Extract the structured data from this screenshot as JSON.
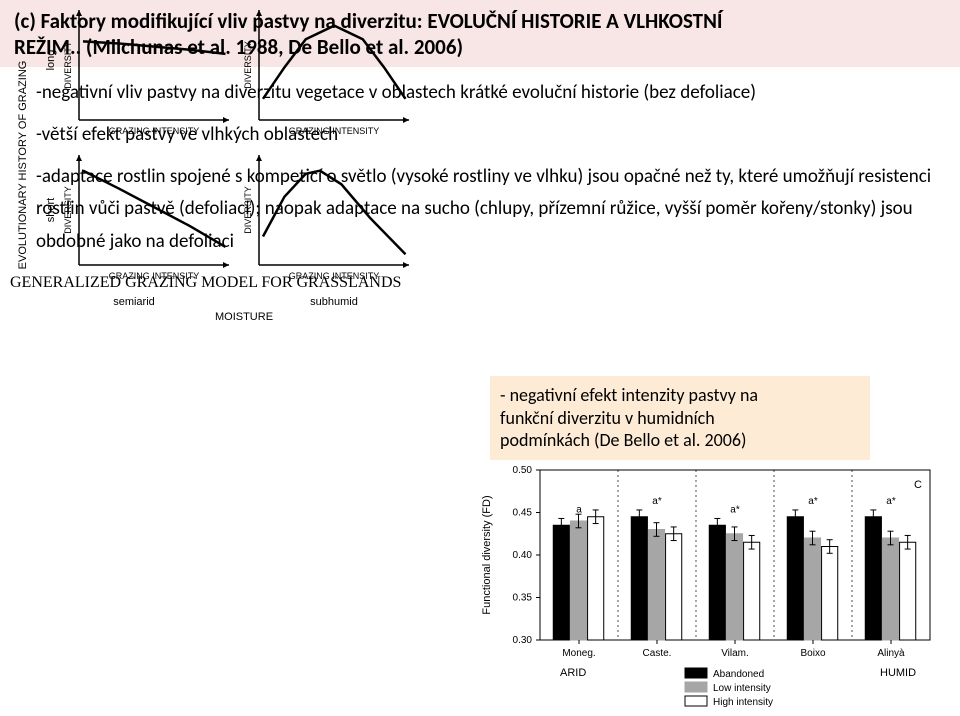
{
  "header": {
    "line1": "(c) Faktory modifikující vliv pastvy na diverzitu: EVOLUČNÍ HISTORIE A VLHKOSTNÍ",
    "line2": "REŽIM.. (Milchunas et al. 1988, De Bello et al. 2006)"
  },
  "bullets": {
    "b1": "-negativní vliv pastvy na diverzitu vegetace v oblastech krátké evoluční historie (bez defoliace)",
    "b2": "-větší efekt pastvy ve vlhkých oblastech",
    "b3": "-adaptace rostlin spojené s kompeticí o světlo (vysoké rostliny ve vlhku) jsou opačné než ty, které umožňují resistenci rostlin vůči pastvě (defoliaci); naopak adaptace na sucho (chlupy, přízemní růžice, vyšší poměr kořeny/stonky) jsou obdobné jako na defoliaci"
  },
  "model_title": "GENERALIZED GRAZING MODEL FOR GRASSLANDS",
  "grazing_model": {
    "y_axis_label": "EVOLUTIONARY HISTORY OF GRAZING",
    "y_tick_top": "long",
    "y_tick_bottom": "short",
    "x_axis_label": "MOISTURE",
    "x_tick_left": "semiarid",
    "x_tick_right": "subhumid",
    "panel_x_label": "GRAZING INTENSITY",
    "panel_y_label": "DIVERSITY",
    "colors": {
      "line": "#000000",
      "bg": "#ffffff"
    },
    "curves": {
      "top_left": [
        [
          0,
          0.7
        ],
        [
          0.25,
          0.68
        ],
        [
          0.5,
          0.65
        ],
        [
          0.75,
          0.62
        ],
        [
          1,
          0.58
        ]
      ],
      "top_right": [
        [
          0,
          0.15
        ],
        [
          0.15,
          0.45
        ],
        [
          0.3,
          0.72
        ],
        [
          0.5,
          0.85
        ],
        [
          0.7,
          0.72
        ],
        [
          0.85,
          0.45
        ],
        [
          1,
          0.15
        ]
      ],
      "bottom_left": [
        [
          0,
          0.85
        ],
        [
          0.25,
          0.68
        ],
        [
          0.5,
          0.5
        ],
        [
          0.75,
          0.32
        ],
        [
          1,
          0.12
        ]
      ],
      "bottom_right": [
        [
          0,
          0.22
        ],
        [
          0.15,
          0.6
        ],
        [
          0.3,
          0.82
        ],
        [
          0.4,
          0.85
        ],
        [
          0.55,
          0.72
        ],
        [
          0.75,
          0.4
        ],
        [
          1,
          0.05
        ]
      ]
    }
  },
  "note": {
    "line1": "- negativní efekt intenzity pastvy na",
    "line2": "funkční diverzitu v humidních",
    "line3": "podmínkách (De Bello et al. 2006)"
  },
  "barchart": {
    "type": "bar",
    "panel_letter": "C",
    "ylabel": "Functional diversity (FD)",
    "ylim": [
      0.3,
      0.5
    ],
    "yticks": [
      0.3,
      0.35,
      0.4,
      0.45,
      0.5
    ],
    "categories": [
      "Moneg.",
      "Caste.",
      "Vilam.",
      "Boixo",
      "Alinyà"
    ],
    "x_left_label": "ARID",
    "x_right_label": "HUMID",
    "values": {
      "abandoned": [
        0.435,
        0.445,
        0.435,
        0.445,
        0.445
      ],
      "low": [
        0.44,
        0.43,
        0.425,
        0.42,
        0.42
      ],
      "high": [
        0.445,
        0.425,
        0.415,
        0.41,
        0.415
      ]
    },
    "annotations": [
      "a",
      "a*",
      "a*",
      "a*",
      "a*"
    ],
    "colors": {
      "abandoned": "#000000",
      "low": "#a6a6a6",
      "high": "#ffffff",
      "high_border": "#000000",
      "axis": "#000000",
      "bg": "#ffffff",
      "error_bar": "#000000"
    },
    "error_bar_half": 0.008,
    "bar_width": 0.22,
    "legend": {
      "abandoned": "Abandoned",
      "low": "Low intensity",
      "high": "High intensity"
    }
  }
}
